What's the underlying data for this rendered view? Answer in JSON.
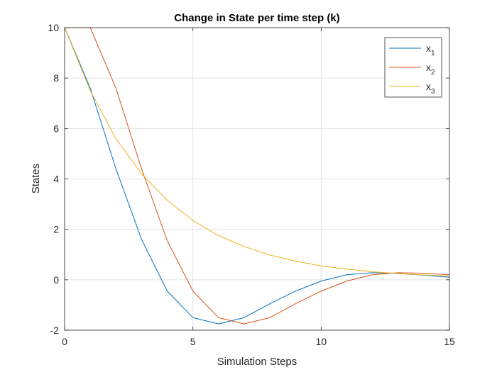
{
  "chart_data": {
    "type": "line",
    "title": "Change in State per time step (k)",
    "xlabel": "Simulation Steps",
    "ylabel": "States",
    "xlim": [
      0,
      15
    ],
    "ylim": [
      -2,
      10
    ],
    "xticks": [
      0,
      5,
      10,
      15
    ],
    "yticks": [
      -2,
      0,
      2,
      4,
      6,
      8,
      10
    ],
    "grid": true,
    "legend_position": "top-right",
    "x": [
      0,
      1,
      2,
      3,
      4,
      5,
      6,
      7,
      8,
      9,
      10,
      11,
      12,
      13,
      14,
      15
    ],
    "series": [
      {
        "name": "x",
        "subscript": "1",
        "color": "#0072BD",
        "values": [
          10,
          7.6,
          4.4,
          1.6,
          -0.45,
          -1.5,
          -1.75,
          -1.5,
          -0.95,
          -0.45,
          -0.05,
          0.2,
          0.28,
          0.25,
          0.18,
          0.1
        ]
      },
      {
        "name": "x",
        "subscript": "2",
        "color": "#D95319",
        "values": [
          10,
          10,
          7.6,
          4.4,
          1.55,
          -0.45,
          -1.5,
          -1.75,
          -1.5,
          -0.95,
          -0.45,
          -0.05,
          0.2,
          0.28,
          0.26,
          0.2
        ]
      },
      {
        "name": "x",
        "subscript": "3",
        "color": "#EDB120",
        "values": [
          10,
          7.5,
          5.6,
          4.2,
          3.15,
          2.35,
          1.75,
          1.32,
          0.98,
          0.74,
          0.55,
          0.42,
          0.32,
          0.25,
          0.19,
          0.15
        ]
      }
    ]
  }
}
